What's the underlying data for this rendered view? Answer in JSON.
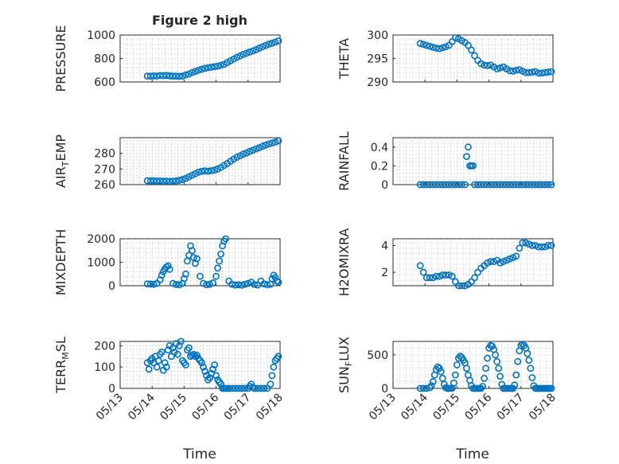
{
  "figure": {
    "title": "Figure 2 high",
    "xlabel": "Time",
    "xticks": [
      "05/13",
      "05/14",
      "05/15",
      "05/16",
      "05/17",
      "05/18"
    ],
    "marker_color": "#0072BD",
    "grid": true
  },
  "chart_data": [
    {
      "type": "scatter",
      "panel": "PRESSURE",
      "ylabel": "PRESSURE",
      "ylim": [
        600,
        1000
      ],
      "yticks": [
        600,
        800,
        1000
      ],
      "x": [
        13.85,
        13.95,
        14.05,
        14.15,
        14.25,
        14.35,
        14.45,
        14.55,
        14.65,
        14.75,
        14.85,
        14.95,
        15.05,
        15.15,
        15.25,
        15.35,
        15.45,
        15.55,
        15.65,
        15.75,
        15.85,
        15.95,
        16.05,
        16.15,
        16.25,
        16.35,
        16.45,
        16.55,
        16.65,
        16.75,
        16.85,
        16.95,
        17.05,
        17.15,
        17.25,
        17.35,
        17.45,
        17.55,
        17.65,
        17.75,
        17.85,
        17.95
      ],
      "y": [
        650,
        650,
        652,
        651,
        655,
        654,
        656,
        652,
        650,
        649,
        648,
        650,
        660,
        668,
        680,
        690,
        700,
        708,
        716,
        722,
        726,
        730,
        735,
        742,
        750,
        765,
        780,
        795,
        810,
        822,
        835,
        845,
        855,
        865,
        875,
        888,
        900,
        912,
        922,
        930,
        940,
        950
      ]
    },
    {
      "type": "scatter",
      "panel": "THETA",
      "ylabel": "THETA",
      "ylim": [
        290,
        300
      ],
      "yticks": [
        290,
        295,
        300
      ],
      "x": [
        13.85,
        13.95,
        14.05,
        14.15,
        14.25,
        14.35,
        14.45,
        14.55,
        14.65,
        14.75,
        14.85,
        14.95,
        15.05,
        15.15,
        15.25,
        15.35,
        15.45,
        15.55,
        15.65,
        15.75,
        15.85,
        15.95,
        16.05,
        16.15,
        16.25,
        16.35,
        16.45,
        16.55,
        16.65,
        16.75,
        16.85,
        16.95,
        17.05,
        17.15,
        17.25,
        17.35,
        17.45,
        17.55,
        17.65,
        17.75,
        17.85,
        17.95
      ],
      "y": [
        298.2,
        298.0,
        297.8,
        297.6,
        297.4,
        297.2,
        297.1,
        297.3,
        297.5,
        297.8,
        298.6,
        299.4,
        299.2,
        298.8,
        298.4,
        297.8,
        296.8,
        295.6,
        294.6,
        293.9,
        293.6,
        293.5,
        293.6,
        293.2,
        292.8,
        293.0,
        293.2,
        292.8,
        292.4,
        292.3,
        292.5,
        292.6,
        292.3,
        292.0,
        292.0,
        292.1,
        292.2,
        291.9,
        291.9,
        292.0,
        292.1,
        292.2
      ]
    },
    {
      "type": "scatter",
      "panel": "AIR_TEMP",
      "ylabel": "AIR_TEMP",
      "ylim": [
        260,
        290
      ],
      "yticks": [
        260,
        270,
        280
      ],
      "x": [
        13.85,
        13.95,
        14.05,
        14.15,
        14.25,
        14.35,
        14.45,
        14.55,
        14.65,
        14.75,
        14.85,
        14.95,
        15.05,
        15.15,
        15.25,
        15.35,
        15.45,
        15.55,
        15.65,
        15.75,
        15.85,
        15.95,
        16.05,
        16.15,
        16.25,
        16.35,
        16.45,
        16.55,
        16.65,
        16.75,
        16.85,
        16.95,
        17.05,
        17.15,
        17.25,
        17.35,
        17.45,
        17.55,
        17.65,
        17.75,
        17.85,
        17.95
      ],
      "y": [
        262.5,
        262.4,
        262.5,
        262.3,
        262.4,
        262.2,
        262.3,
        262.1,
        262.3,
        262.4,
        262.8,
        263.3,
        264.0,
        265.0,
        266.0,
        267.0,
        268.0,
        268.5,
        268.8,
        268.6,
        268.9,
        269.3,
        270.0,
        271.0,
        272.3,
        273.5,
        275.0,
        276.3,
        277.5,
        278.5,
        279.5,
        280.3,
        281.2,
        282.0,
        282.8,
        283.6,
        284.5,
        285.3,
        286.0,
        286.6,
        287.2,
        288.0
      ]
    },
    {
      "type": "scatter",
      "panel": "RAINFALL",
      "ylabel": "RAINFALL",
      "ylim": [
        0,
        0.5
      ],
      "yticks": [
        0,
        0.2,
        0.4
      ],
      "x": [
        13.85,
        13.95,
        14.05,
        14.15,
        14.25,
        14.35,
        14.45,
        14.55,
        14.65,
        14.75,
        14.85,
        14.95,
        15.05,
        15.15,
        15.25,
        15.3,
        15.35,
        15.4,
        15.45,
        15.5,
        15.55,
        15.65,
        15.75,
        15.85,
        15.95,
        16.05,
        16.15,
        16.25,
        16.35,
        16.45,
        16.55,
        16.65,
        16.75,
        16.85,
        16.95,
        17.05,
        17.15,
        17.25,
        17.35,
        17.45,
        17.55,
        17.65,
        17.75,
        17.85,
        17.95
      ],
      "y": [
        0,
        0,
        0,
        0,
        0,
        0,
        0,
        0,
        0,
        0,
        0,
        0,
        0,
        0,
        0,
        0.3,
        0.4,
        0.2,
        0.2,
        0.2,
        0,
        0,
        0,
        0,
        0,
        0,
        0,
        0,
        0,
        0,
        0,
        0,
        0,
        0,
        0,
        0,
        0,
        0,
        0,
        0,
        0,
        0,
        0,
        0,
        0
      ]
    },
    {
      "type": "scatter",
      "panel": "MIXDEPTH",
      "ylabel": "MIXDEPTH",
      "ylim": [
        0,
        2000
      ],
      "yticks": [
        0,
        1000,
        2000
      ],
      "x": [
        13.85,
        13.95,
        14.05,
        14.15,
        14.25,
        14.3,
        14.35,
        14.4,
        14.45,
        14.5,
        14.55,
        14.65,
        14.75,
        14.85,
        14.95,
        15.0,
        15.05,
        15.1,
        15.15,
        15.2,
        15.25,
        15.3,
        15.35,
        15.4,
        15.5,
        15.6,
        15.7,
        15.8,
        15.9,
        16.0,
        16.05,
        16.1,
        16.15,
        16.2,
        16.25,
        16.3,
        16.4,
        16.5,
        16.6,
        16.7,
        16.8,
        16.9,
        17.0,
        17.1,
        17.2,
        17.3,
        17.4,
        17.5,
        17.6,
        17.7,
        17.75,
        17.8,
        17.85,
        17.9,
        17.95
      ],
      "y": [
        80,
        70,
        60,
        100,
        250,
        450,
        600,
        720,
        800,
        850,
        700,
        100,
        50,
        40,
        100,
        300,
        500,
        1050,
        1300,
        1700,
        1500,
        1200,
        950,
        1150,
        400,
        100,
        40,
        60,
        120,
        400,
        750,
        1050,
        1350,
        1700,
        1900,
        2000,
        200,
        60,
        30,
        40,
        20,
        60,
        100,
        150,
        50,
        30,
        200,
        80,
        40,
        60,
        300,
        450,
        350,
        200,
        150
      ]
    },
    {
      "type": "scatter",
      "panel": "H2OMIXRA",
      "ylabel": "H2OMIXRA",
      "ylim": [
        1,
        4.5
      ],
      "yticks": [
        2,
        4
      ],
      "x": [
        13.85,
        13.95,
        14.05,
        14.15,
        14.25,
        14.35,
        14.45,
        14.55,
        14.65,
        14.75,
        14.85,
        14.95,
        15.05,
        15.15,
        15.25,
        15.35,
        15.45,
        15.55,
        15.65,
        15.75,
        15.85,
        15.95,
        16.05,
        16.15,
        16.25,
        16.35,
        16.45,
        16.55,
        16.65,
        16.75,
        16.85,
        16.95,
        17.05,
        17.15,
        17.25,
        17.35,
        17.45,
        17.55,
        17.65,
        17.75,
        17.85,
        17.95
      ],
      "y": [
        2.5,
        2.0,
        1.6,
        1.6,
        1.6,
        1.7,
        1.7,
        1.8,
        1.8,
        1.8,
        1.7,
        1.3,
        1.0,
        1.0,
        1.0,
        1.1,
        1.3,
        1.6,
        2.0,
        2.3,
        2.5,
        2.7,
        2.8,
        2.8,
        2.9,
        2.7,
        2.8,
        2.9,
        3.0,
        3.1,
        3.2,
        3.8,
        4.2,
        4.2,
        4.1,
        4.0,
        4.0,
        3.9,
        3.9,
        3.9,
        4.0,
        4.0
      ]
    },
    {
      "type": "scatter",
      "panel": "TERR_MSL",
      "ylabel": "TERR_MSL",
      "ylim": [
        0,
        220
      ],
      "yticks": [
        0,
        100,
        200
      ],
      "x": [
        13.85,
        13.9,
        13.95,
        14.0,
        14.05,
        14.1,
        14.15,
        14.2,
        14.25,
        14.3,
        14.35,
        14.4,
        14.45,
        14.5,
        14.55,
        14.6,
        14.65,
        14.7,
        14.75,
        14.8,
        14.85,
        14.9,
        14.95,
        15.0,
        15.05,
        15.1,
        15.15,
        15.2,
        15.25,
        15.3,
        15.35,
        15.4,
        15.45,
        15.5,
        15.55,
        15.6,
        15.65,
        15.7,
        15.75,
        15.8,
        15.85,
        15.9,
        15.95,
        16.0,
        16.05,
        16.1,
        16.15,
        16.2,
        16.25,
        16.3,
        16.35,
        16.4,
        16.5,
        16.6,
        16.7,
        16.8,
        16.9,
        17.0,
        17.05,
        17.1,
        17.15,
        17.2,
        17.3,
        17.4,
        17.5,
        17.6,
        17.7,
        17.75,
        17.8,
        17.85,
        17.9,
        17.95
      ],
      "y": [
        120,
        90,
        130,
        140,
        120,
        150,
        100,
        130,
        160,
        170,
        85,
        120,
        100,
        180,
        200,
        150,
        190,
        170,
        210,
        160,
        200,
        220,
        130,
        120,
        110,
        180,
        190,
        150,
        155,
        160,
        150,
        155,
        140,
        130,
        120,
        100,
        80,
        60,
        40,
        50,
        70,
        90,
        110,
        60,
        40,
        30,
        20,
        0,
        0,
        0,
        0,
        0,
        0,
        0,
        0,
        0,
        0,
        0,
        10,
        20,
        5,
        0,
        0,
        0,
        0,
        0,
        20,
        60,
        100,
        130,
        140,
        150
      ]
    },
    {
      "type": "scatter",
      "panel": "SUN_FLUX",
      "ylabel": "SUN_FLUX",
      "ylim": [
        0,
        700
      ],
      "yticks": [
        0,
        500
      ],
      "x": [
        13.85,
        13.95,
        14.05,
        14.15,
        14.2,
        14.25,
        14.3,
        14.35,
        14.4,
        14.45,
        14.5,
        14.55,
        14.6,
        14.65,
        14.7,
        14.75,
        14.8,
        14.85,
        14.9,
        14.95,
        15.0,
        15.05,
        15.1,
        15.15,
        15.2,
        15.25,
        15.3,
        15.35,
        15.4,
        15.45,
        15.5,
        15.55,
        15.6,
        15.65,
        15.7,
        15.75,
        15.8,
        15.85,
        15.9,
        15.95,
        16.0,
        16.05,
        16.1,
        16.15,
        16.2,
        16.25,
        16.3,
        16.35,
        16.4,
        16.45,
        16.5,
        16.55,
        16.6,
        16.65,
        16.7,
        16.75,
        16.8,
        16.85,
        16.9,
        16.95,
        17.0,
        17.05,
        17.1,
        17.15,
        17.2,
        17.25,
        17.3,
        17.35,
        17.4,
        17.45,
        17.5,
        17.55,
        17.6,
        17.65,
        17.7,
        17.75,
        17.8,
        17.85,
        17.9,
        17.95
      ],
      "y": [
        0,
        0,
        0,
        10,
        40,
        100,
        200,
        280,
        320,
        300,
        250,
        150,
        60,
        10,
        0,
        0,
        0,
        5,
        80,
        200,
        350,
        450,
        480,
        460,
        420,
        380,
        300,
        200,
        120,
        40,
        0,
        0,
        0,
        0,
        0,
        0,
        30,
        150,
        300,
        450,
        600,
        640,
        630,
        580,
        500,
        400,
        300,
        180,
        60,
        0,
        0,
        0,
        0,
        0,
        0,
        0,
        50,
        200,
        400,
        560,
        640,
        660,
        640,
        600,
        520,
        420,
        300,
        160,
        40,
        0,
        0,
        0,
        0,
        0,
        0,
        0,
        0,
        0,
        0,
        0
      ]
    }
  ]
}
